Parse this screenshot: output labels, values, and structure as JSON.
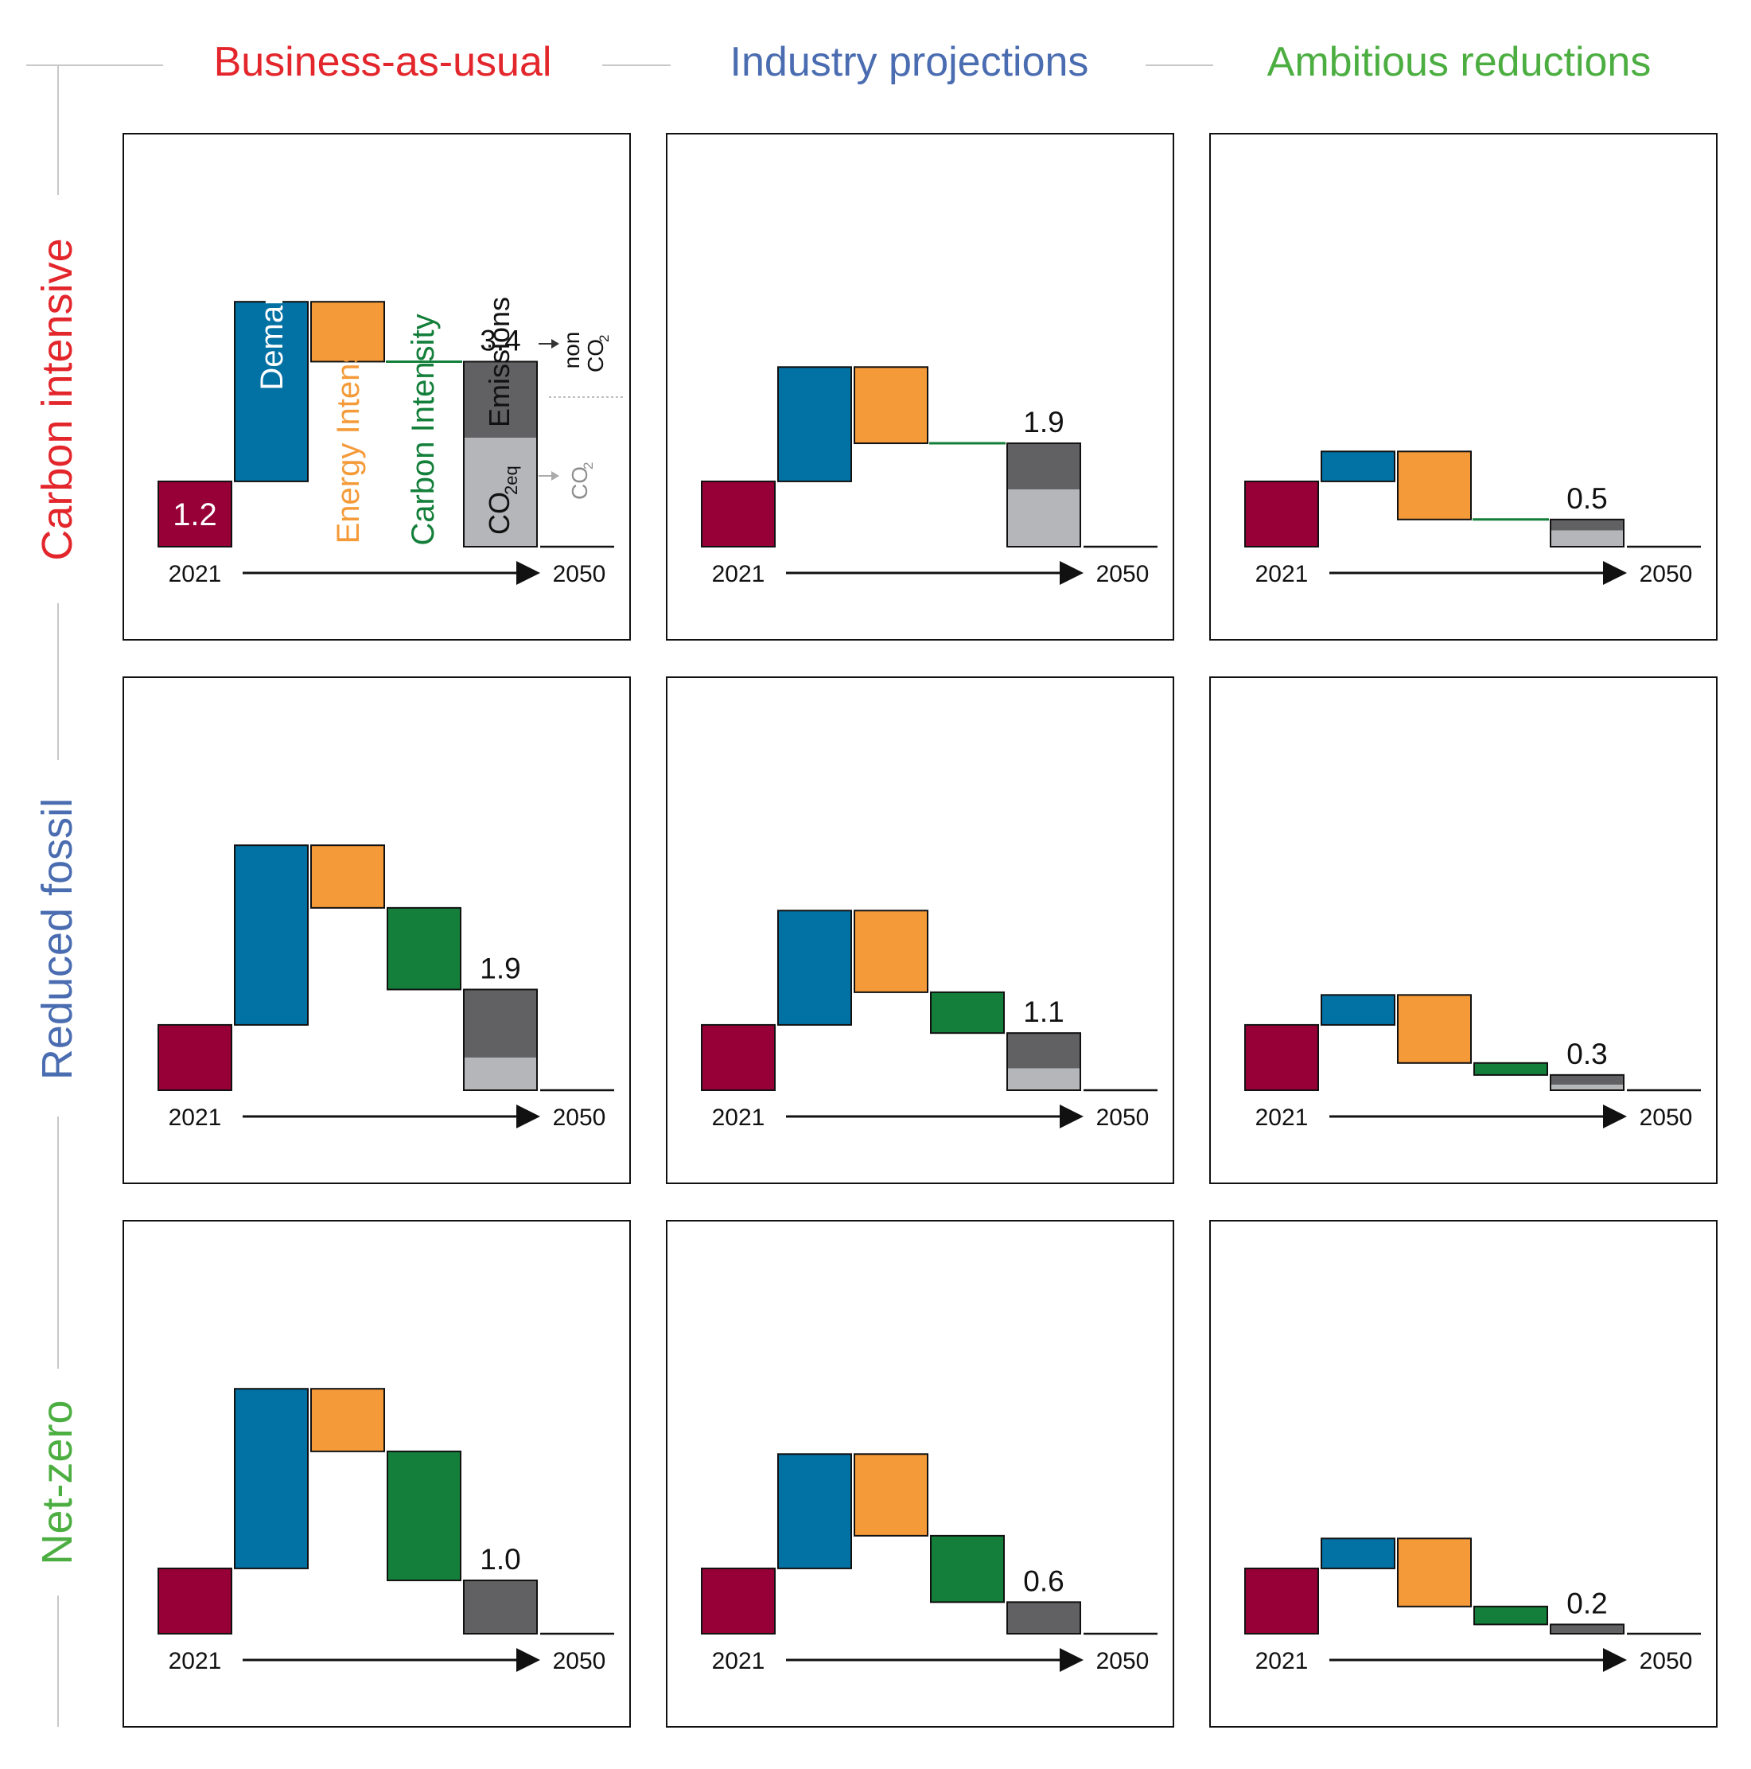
{
  "columns": [
    {
      "label": "Business-as-usual",
      "color": "#e3262b"
    },
    {
      "label": "Industry projections",
      "color": "#4a6cb0"
    },
    {
      "label": "Ambitious reductions",
      "color": "#4cae41"
    }
  ],
  "rows": [
    {
      "label": "Carbon intensive",
      "color": "#e3262b"
    },
    {
      "label": "Reduced fossil",
      "color": "#4a6cb0"
    },
    {
      "label": "Net-zero",
      "color": "#4cae41"
    }
  ],
  "colors": {
    "start": "#960036",
    "demand": "#0271a4",
    "energy_intensity": "#f59a39",
    "carbon_intensity": "#137f3a",
    "non_co2": "#616163",
    "co2": "#b5b6b9"
  },
  "annotations": {
    "demand": "Demand",
    "energy_intensity": "Energy Intensity",
    "carbon_intensity": "Carbon Intensity",
    "emissions": "Emissions",
    "co2eq_main": "CO",
    "co2eq_sub": "2eq",
    "non_line1": "non",
    "non_co2_main": "CO",
    "non_co2_sub": "2",
    "co2_main": "CO",
    "co2_sub": "2"
  },
  "chart_data": {
    "type": "bar",
    "subtype": "waterfall",
    "x_start": "2021",
    "x_end": "2050",
    "start_value": 1.2,
    "start_label": "1.2",
    "panels": [
      {
        "row": "Carbon intensive",
        "column": "Business-as-usual",
        "demand": 4.5,
        "energy_intensity": 3.4,
        "carbon_intensity": 3.4,
        "emissions": 3.4,
        "co2": 2.0,
        "label": "3.4"
      },
      {
        "row": "Carbon intensive",
        "column": "Industry projections",
        "demand": 3.3,
        "energy_intensity": 1.9,
        "carbon_intensity": 1.9,
        "emissions": 1.9,
        "co2": 1.05,
        "label": "1.9"
      },
      {
        "row": "Carbon intensive",
        "column": "Ambitious reductions",
        "demand": 1.75,
        "energy_intensity": 0.5,
        "carbon_intensity": 0.5,
        "emissions": 0.5,
        "co2": 0.3,
        "label": "0.5"
      },
      {
        "row": "Reduced fossil",
        "column": "Business-as-usual",
        "demand": 4.5,
        "energy_intensity": 3.35,
        "carbon_intensity": 1.85,
        "emissions": 1.85,
        "co2": 0.6,
        "label": "1.9"
      },
      {
        "row": "Reduced fossil",
        "column": "Industry projections",
        "demand": 3.3,
        "energy_intensity": 1.8,
        "carbon_intensity": 1.05,
        "emissions": 1.05,
        "co2": 0.4,
        "label": "1.1"
      },
      {
        "row": "Reduced fossil",
        "column": "Ambitious reductions",
        "demand": 1.75,
        "energy_intensity": 0.5,
        "carbon_intensity": 0.28,
        "emissions": 0.28,
        "co2": 0.1,
        "label": "0.3"
      },
      {
        "row": "Net-zero",
        "column": "Business-as-usual",
        "demand": 4.5,
        "energy_intensity": 3.35,
        "carbon_intensity": 0.98,
        "emissions": 0.98,
        "co2": 0.0,
        "label": "1.0"
      },
      {
        "row": "Net-zero",
        "column": "Industry projections",
        "demand": 3.3,
        "energy_intensity": 1.8,
        "carbon_intensity": 0.58,
        "emissions": 0.58,
        "co2": 0.0,
        "label": "0.6"
      },
      {
        "row": "Net-zero",
        "column": "Ambitious reductions",
        "demand": 1.75,
        "energy_intensity": 0.5,
        "carbon_intensity": 0.17,
        "emissions": 0.17,
        "co2": 0.0,
        "label": "0.2"
      }
    ]
  }
}
